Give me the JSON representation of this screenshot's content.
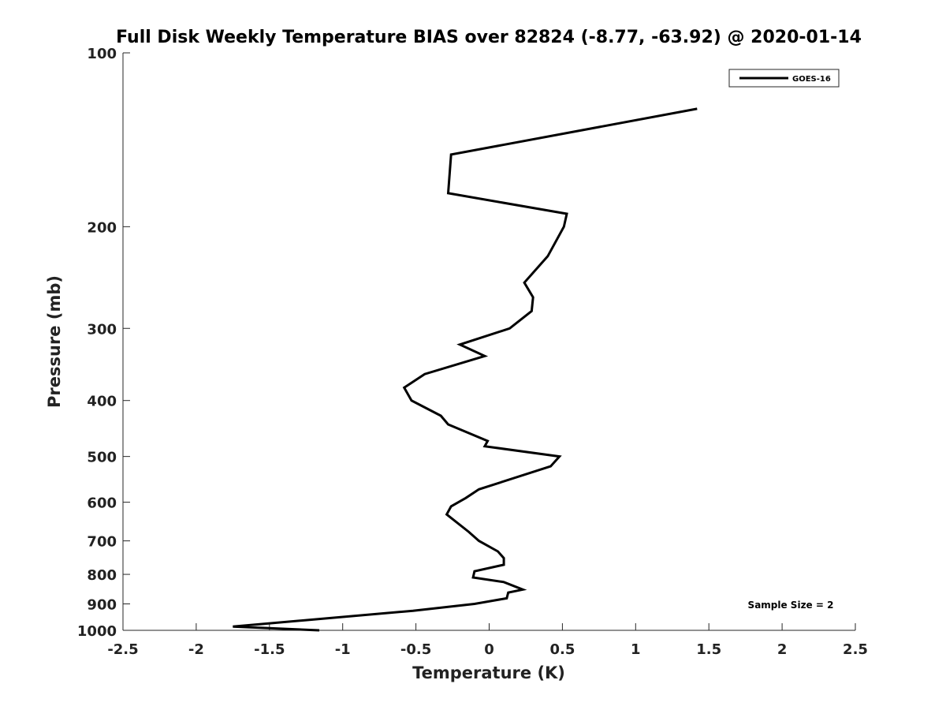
{
  "chart_data": {
    "type": "line",
    "title": "Full Disk Weekly Temperature BIAS over 82824 (-8.77, -63.92) @ 2020-01-14",
    "xlabel": "Temperature (K)",
    "ylabel": "Pressure (mb)",
    "xlim": [
      -2.5,
      2.5
    ],
    "ylim": [
      100,
      1000
    ],
    "y_scale": "log",
    "y_reversed": true,
    "x_ticks": [
      -2.5,
      -2,
      -1.5,
      -1,
      -0.5,
      0,
      0.5,
      1,
      1.5,
      2,
      2.5
    ],
    "x_tick_labels": [
      "-2.5",
      "-2",
      "-1.5",
      "-1",
      "-0.5",
      "0",
      "0.5",
      "1",
      "1.5",
      "2",
      "2.5"
    ],
    "y_ticks": [
      100,
      200,
      300,
      400,
      500,
      600,
      700,
      800,
      900,
      1000
    ],
    "y_tick_labels": [
      "100",
      "200",
      "300",
      "400",
      "500",
      "600",
      "700",
      "800",
      "900",
      "1000"
    ],
    "grid": false,
    "legend_position": "top-right",
    "annotation": "Sample Size = 2",
    "line_color": "#000000",
    "series": [
      {
        "name": "GOES-16",
        "points": [
          {
            "x": 1.42,
            "y": 125
          },
          {
            "x": -0.26,
            "y": 150
          },
          {
            "x": -0.28,
            "y": 175
          },
          {
            "x": 0.53,
            "y": 190
          },
          {
            "x": 0.51,
            "y": 200
          },
          {
            "x": 0.4,
            "y": 225
          },
          {
            "x": 0.24,
            "y": 250
          },
          {
            "x": 0.3,
            "y": 265
          },
          {
            "x": 0.29,
            "y": 280
          },
          {
            "x": 0.14,
            "y": 300
          },
          {
            "x": -0.2,
            "y": 320
          },
          {
            "x": -0.03,
            "y": 335
          },
          {
            "x": -0.44,
            "y": 360
          },
          {
            "x": -0.58,
            "y": 380
          },
          {
            "x": -0.53,
            "y": 400
          },
          {
            "x": -0.33,
            "y": 425
          },
          {
            "x": -0.28,
            "y": 440
          },
          {
            "x": -0.01,
            "y": 470
          },
          {
            "x": -0.03,
            "y": 480
          },
          {
            "x": 0.48,
            "y": 500
          },
          {
            "x": 0.42,
            "y": 520
          },
          {
            "x": -0.07,
            "y": 570
          },
          {
            "x": -0.16,
            "y": 590
          },
          {
            "x": -0.26,
            "y": 610
          },
          {
            "x": -0.29,
            "y": 630
          },
          {
            "x": -0.14,
            "y": 675
          },
          {
            "x": -0.07,
            "y": 700
          },
          {
            "x": 0.06,
            "y": 730
          },
          {
            "x": 0.1,
            "y": 750
          },
          {
            "x": 0.1,
            "y": 770
          },
          {
            "x": -0.1,
            "y": 790
          },
          {
            "x": -0.11,
            "y": 810
          },
          {
            "x": 0.1,
            "y": 825
          },
          {
            "x": 0.23,
            "y": 850
          },
          {
            "x": 0.13,
            "y": 860
          },
          {
            "x": 0.12,
            "y": 880
          },
          {
            "x": -0.1,
            "y": 900
          },
          {
            "x": -0.52,
            "y": 925
          },
          {
            "x": -1.75,
            "y": 985
          },
          {
            "x": -1.16,
            "y": 1000
          }
        ]
      }
    ]
  }
}
